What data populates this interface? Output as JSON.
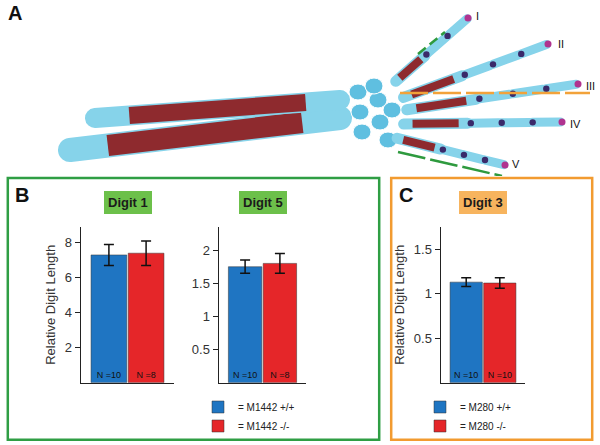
{
  "panels": [
    {
      "label": "A",
      "digit_labels": [
        "I",
        "II",
        "III",
        "IV",
        "V"
      ]
    },
    {
      "label": "B"
    },
    {
      "label": "C"
    }
  ],
  "chart_data": [
    {
      "type": "bar",
      "title": "Digit 1",
      "y_label": "Relative Digit Length",
      "categories": [
        null
      ],
      "series": [
        {
          "name": "= M1442 +/+",
          "color": "#1f75c2",
          "values": [
            7.3
          ],
          "errors": [
            0.6
          ],
          "bar_labels": [
            "N =10"
          ]
        },
        {
          "name": "= M1442 -/-",
          "color": "#e52629",
          "values": [
            7.4
          ],
          "errors": [
            0.7
          ],
          "bar_labels": [
            "N =8"
          ]
        }
      ],
      "ylim": [
        0,
        8.9
      ],
      "yticks": [
        2,
        4,
        6,
        8
      ],
      "tick_labels": "y",
      "grid": false,
      "legend": "bottom"
    },
    {
      "type": "bar",
      "title": "Digit 5",
      "categories": [
        null
      ],
      "series": [
        {
          "name": "= M1442 +/+",
          "color": "#1f75c2",
          "values": [
            1.75
          ],
          "errors": [
            0.1
          ],
          "bar_labels": [
            "N =10"
          ]
        },
        {
          "name": "= M1442 -/-",
          "color": "#e52629",
          "values": [
            1.8
          ],
          "errors": [
            0.15
          ],
          "bar_labels": [
            "N =8"
          ]
        }
      ],
      "ylim": [
        0,
        2.35
      ],
      "yticks": [
        0.5,
        1,
        1.5,
        2
      ],
      "tick_labels": "y",
      "grid": false,
      "legend": "bottom"
    },
    {
      "type": "bar",
      "title": "Digit 3",
      "y_label": "Relative Digit Length",
      "categories": [
        null
      ],
      "series": [
        {
          "name": "= M280 +/+",
          "color": "#1f75c2",
          "values": [
            1.13
          ],
          "errors": [
            0.05
          ],
          "bar_labels": [
            "N =10"
          ]
        },
        {
          "name": "= M280 -/-",
          "color": "#e52629",
          "values": [
            1.12
          ],
          "errors": [
            0.06
          ],
          "bar_labels": [
            "N =10"
          ]
        }
      ],
      "ylim": [
        0,
        1.75
      ],
      "yticks": [
        0.5,
        1,
        1.5
      ],
      "tick_labels": "y",
      "grid": false,
      "legend": "bottom"
    }
  ]
}
